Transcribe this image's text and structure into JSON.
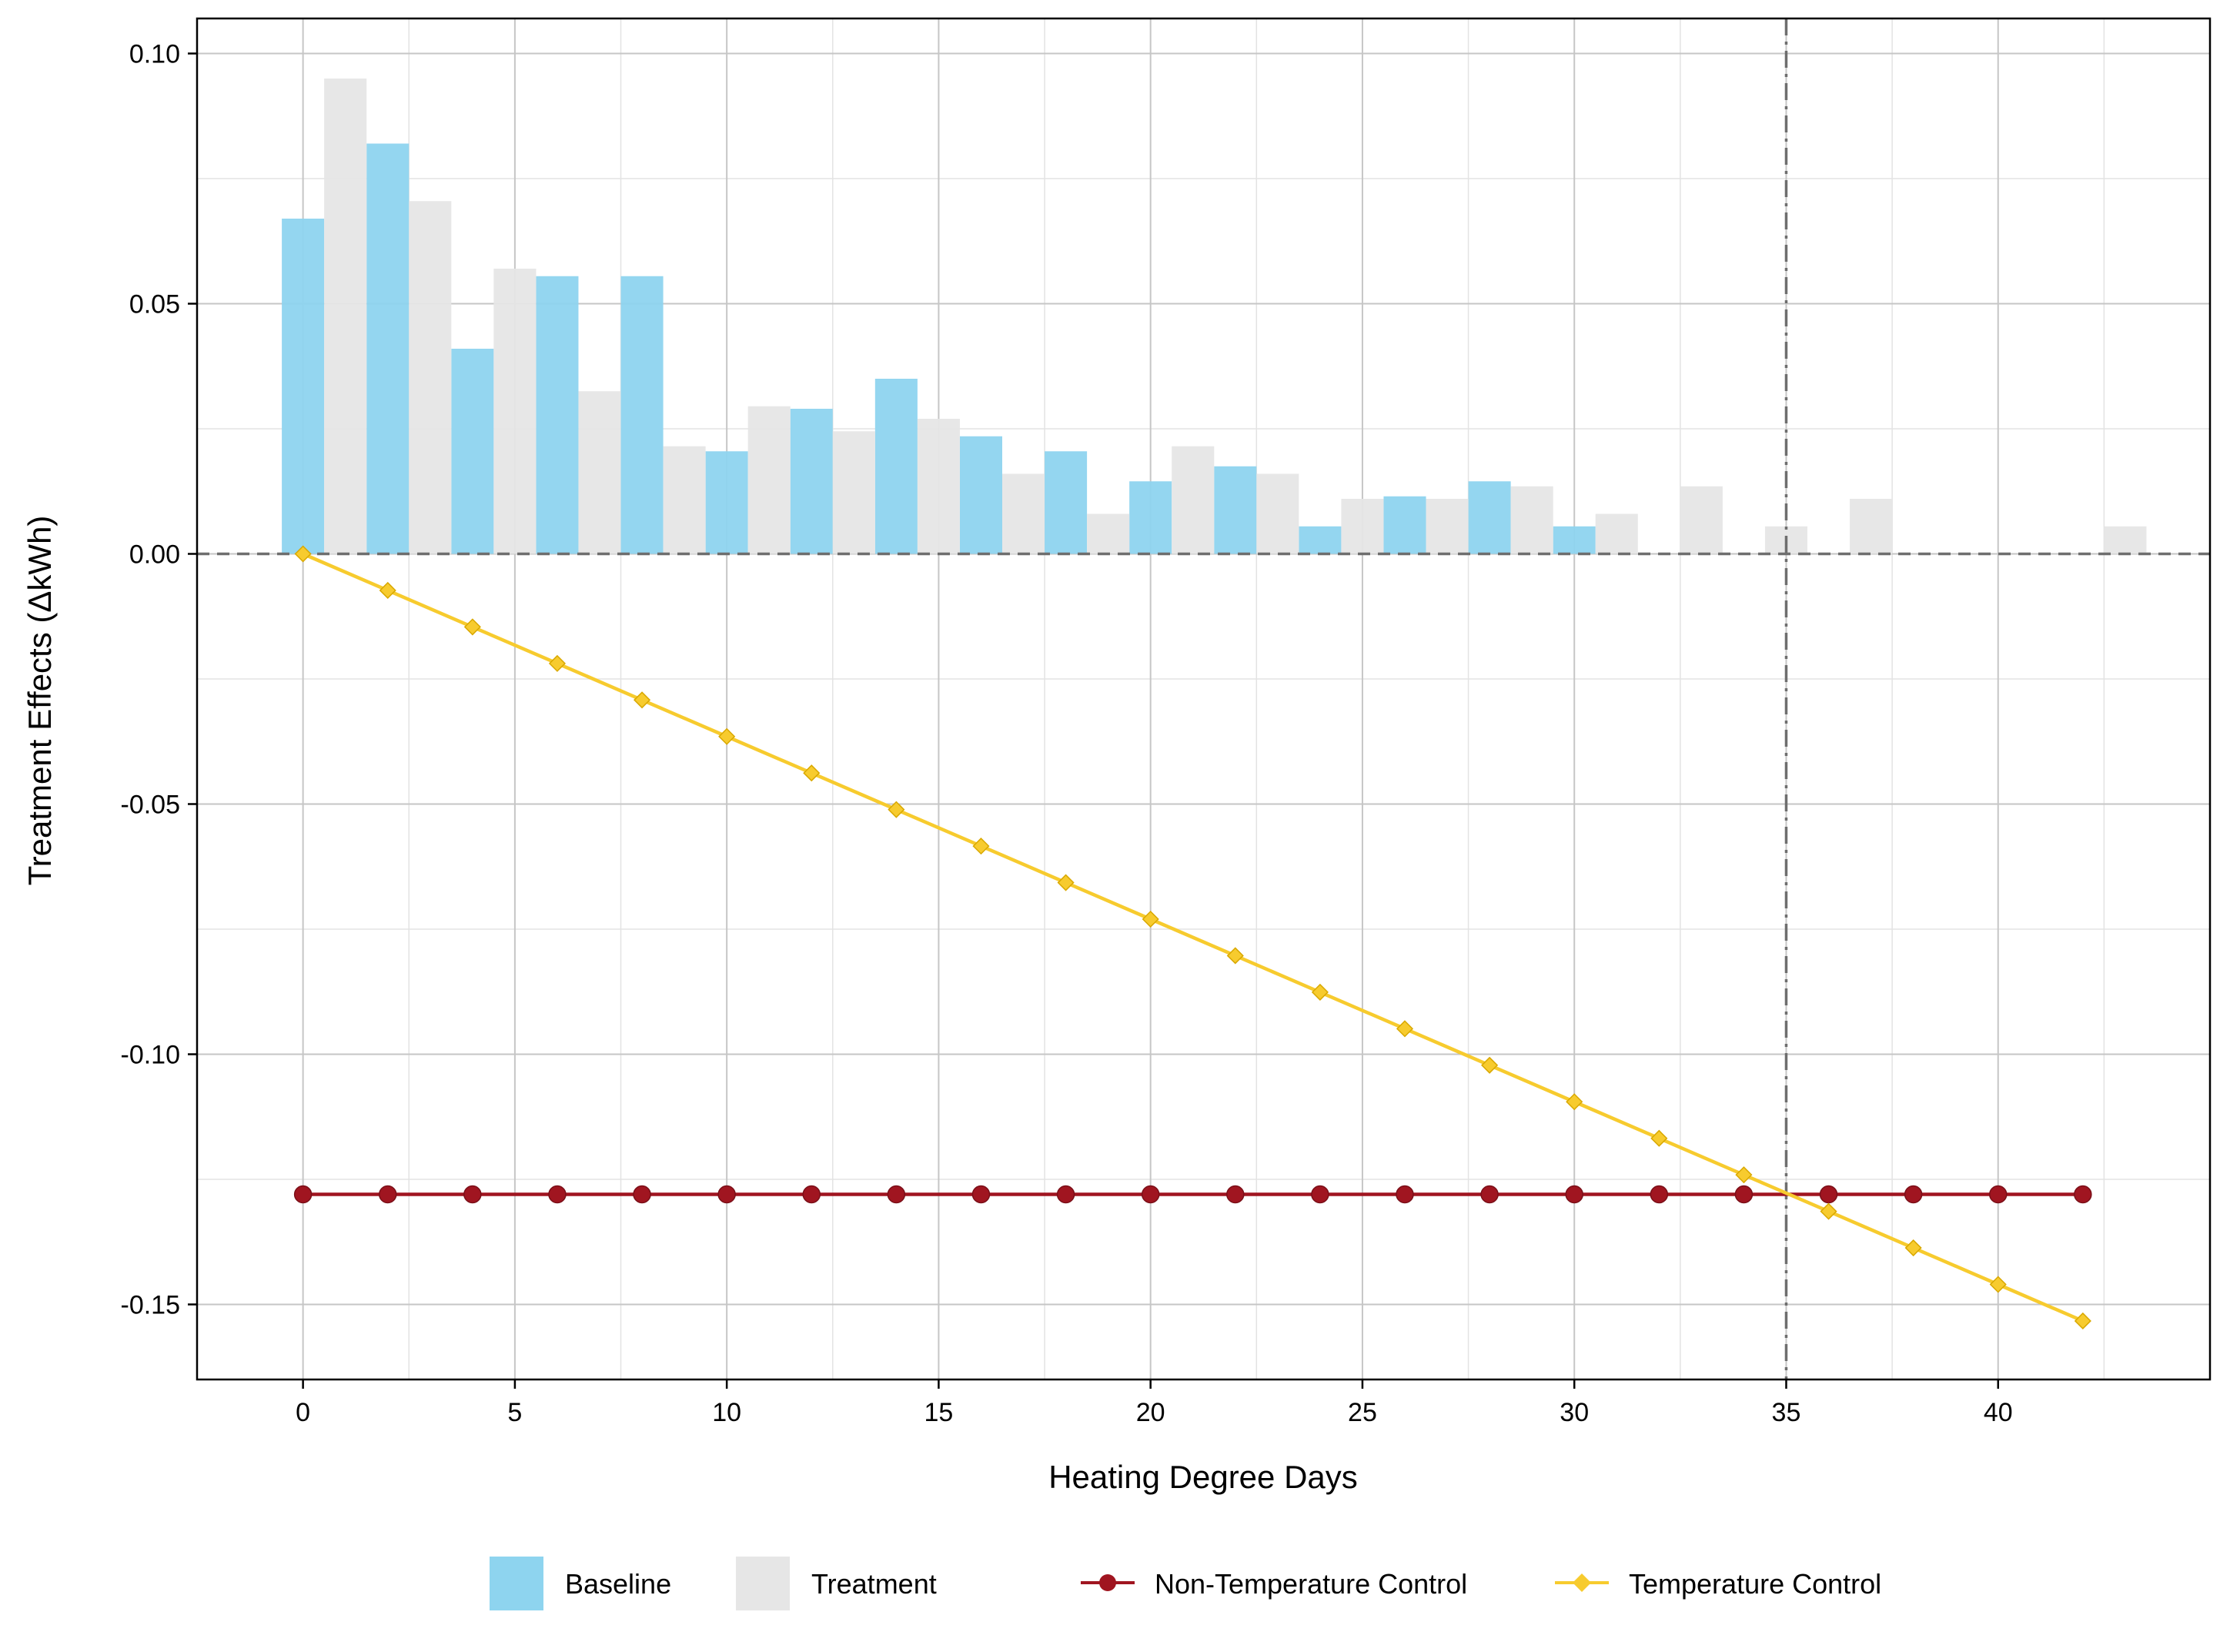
{
  "colors": {
    "baseline": "#8ed4ef",
    "treatment": "#e6e6e6",
    "non_temperature_control": "#a01520",
    "temperature_control": "#f7cb2e",
    "reference_line": "#6e6e6e"
  },
  "chart_data": {
    "type": "bar",
    "xlabel": "Heating Degree Days",
    "ylabel": "Treatment Effects  (ΔkWh)",
    "xlim": [
      -2.5,
      45
    ],
    "ylim": [
      -0.165,
      0.107
    ],
    "x_ticks": [
      0,
      5,
      10,
      15,
      20,
      25,
      30,
      35,
      40
    ],
    "x_tick_labels": [
      "0",
      "5",
      "10",
      "15",
      "20",
      "25",
      "30",
      "35",
      "40"
    ],
    "y_ticks": [
      0.1,
      0.05,
      0.0,
      -0.05,
      -0.1,
      -0.15
    ],
    "y_tick_labels": [
      "0.10",
      "0.05",
      "0.00",
      "-0.05",
      "-0.10",
      "-0.15"
    ],
    "grid": true,
    "bar_width": 1,
    "reference_lines": {
      "horizontal_y": 0,
      "vertical_x": 35
    },
    "legend_position": "bottom",
    "legend": [
      "Baseline",
      "Treatment",
      "Non-Temperature Control",
      "Temperature Control"
    ],
    "bar_series": [
      {
        "name": "Baseline",
        "x": [
          0,
          2,
          4,
          6,
          8,
          10,
          12,
          14,
          16,
          18,
          20,
          22,
          24,
          26,
          28,
          30
        ],
        "values": [
          0.067,
          0.082,
          0.041,
          0.0555,
          0.0555,
          0.0205,
          0.029,
          0.035,
          0.0235,
          0.0205,
          0.0145,
          0.0175,
          0.0055,
          0.0115,
          0.0145,
          0.0055
        ]
      },
      {
        "name": "Treatment",
        "x": [
          1,
          3,
          5,
          7,
          9,
          11,
          13,
          15,
          17,
          19,
          21,
          23,
          25,
          27,
          29,
          31,
          33,
          35,
          37,
          43
        ],
        "values": [
          0.095,
          0.0705,
          0.057,
          0.0325,
          0.0215,
          0.0295,
          0.0245,
          0.027,
          0.016,
          0.008,
          0.0215,
          0.016,
          0.011,
          0.011,
          0.0135,
          0.008,
          0.0135,
          0.0055,
          0.011,
          0.0055
        ]
      }
    ],
    "line_series": [
      {
        "name": "Non-Temperature Control",
        "x": [
          0,
          2,
          4,
          6,
          8,
          10,
          12,
          14,
          16,
          18,
          20,
          22,
          24,
          26,
          28,
          30,
          32,
          34,
          36,
          38,
          40,
          42
        ],
        "values": [
          -0.128,
          -0.128,
          -0.128,
          -0.128,
          -0.128,
          -0.128,
          -0.128,
          -0.128,
          -0.128,
          -0.128,
          -0.128,
          -0.128,
          -0.128,
          -0.128,
          -0.128,
          -0.128,
          -0.128,
          -0.128,
          -0.128,
          -0.128,
          -0.128,
          -0.128
        ]
      },
      {
        "name": "Temperature Control",
        "x": [
          0,
          2,
          4,
          6,
          8,
          10,
          12,
          14,
          16,
          18,
          20,
          22,
          24,
          26,
          28,
          30,
          32,
          34,
          36,
          38,
          40,
          42
        ],
        "values": [
          0.0,
          -0.0073,
          -0.0146,
          -0.0219,
          -0.0292,
          -0.0365,
          -0.0438,
          -0.0511,
          -0.0584,
          -0.0657,
          -0.073,
          -0.0803,
          -0.0876,
          -0.0949,
          -0.1022,
          -0.1095,
          -0.1168,
          -0.1241,
          -0.1314,
          -0.1387,
          -0.146,
          -0.1533
        ]
      }
    ]
  }
}
